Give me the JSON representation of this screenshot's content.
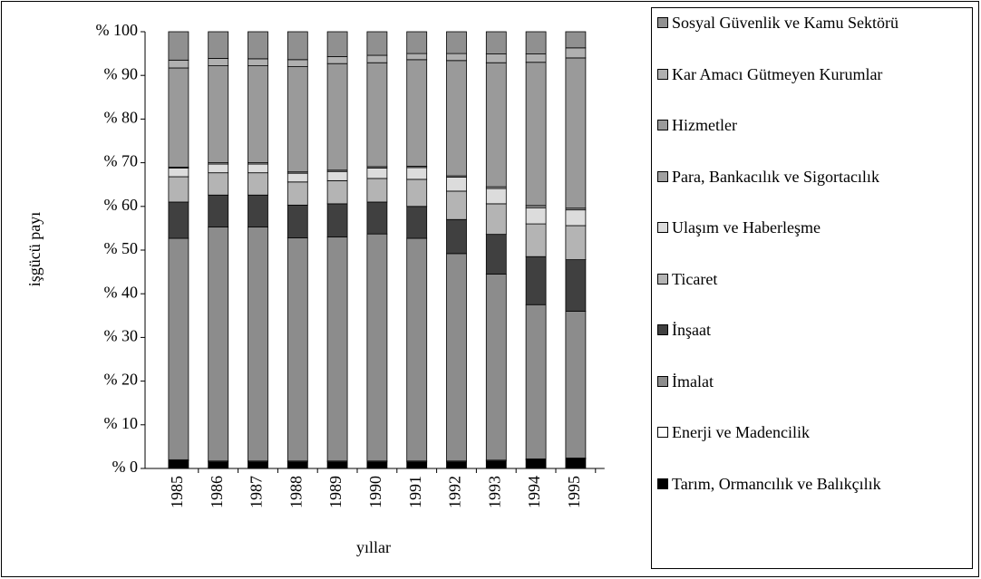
{
  "chart_data": {
    "type": "stacked_bar",
    "x_label": "yıllar",
    "y_label": "işgücü payı",
    "categories": [
      "1985",
      "1986",
      "1987",
      "1988",
      "1989",
      "1990",
      "1991",
      "1992",
      "1993",
      "1994",
      "1995"
    ],
    "ylim": [
      0,
      100
    ],
    "yticks": [
      {
        "value": 0,
        "label": "% 0"
      },
      {
        "value": 10,
        "label": "% 10"
      },
      {
        "value": 20,
        "label": "% 20"
      },
      {
        "value": 30,
        "label": "% 30"
      },
      {
        "value": 40,
        "label": "% 40"
      },
      {
        "value": 50,
        "label": "% 50"
      },
      {
        "value": 60,
        "label": "% 60"
      },
      {
        "value": 70,
        "label": "% 70"
      },
      {
        "value": 80,
        "label": "% 80"
      },
      {
        "value": 90,
        "label": "% 90"
      },
      {
        "value": 100,
        "label": "% 100"
      }
    ],
    "legend_position": "right",
    "series": [
      {
        "name": "Tarım, Ormancılık ve Balıkçılık",
        "color": "#000000",
        "values": [
          1.8,
          1.5,
          1.5,
          1.5,
          1.5,
          1.5,
          1.5,
          1.5,
          1.7,
          2.0,
          2.2
        ]
      },
      {
        "name": "Enerji ve Madencilik",
        "color": "#ffffff",
        "values": [
          0.2,
          0.2,
          0.2,
          0.2,
          0.2,
          0.2,
          0.2,
          0.2,
          0.2,
          0.2,
          0.2
        ]
      },
      {
        "name": "İmalat",
        "color": "#8c8c8c",
        "values": [
          50.7,
          53.6,
          53.6,
          51.1,
          51.3,
          52.0,
          51.0,
          47.5,
          42.6,
          35.3,
          33.6
        ]
      },
      {
        "name": "İnşaat",
        "color": "#404040",
        "values": [
          8.3,
          7.3,
          7.3,
          7.5,
          7.6,
          7.3,
          7.3,
          7.8,
          9.1,
          11.0,
          11.8
        ]
      },
      {
        "name": "Ticaret",
        "color": "#b4b4b4",
        "values": [
          5.8,
          5.1,
          5.1,
          5.3,
          5.3,
          5.4,
          6.2,
          6.5,
          7.0,
          7.5,
          7.8
        ]
      },
      {
        "name": "Ulaşım ve Haberleşme",
        "color": "#dcdcdc",
        "values": [
          2.0,
          2.0,
          2.0,
          2.0,
          2.1,
          2.4,
          2.7,
          3.2,
          3.5,
          3.7,
          3.6
        ]
      },
      {
        "name": "Para, Bankacılık ve Sigortacılık",
        "color": "#a0a0a0",
        "values": [
          0.2,
          0.3,
          0.3,
          0.3,
          0.3,
          0.3,
          0.3,
          0.3,
          0.4,
          0.5,
          0.4
        ]
      },
      {
        "name": "Hizmetler",
        "color": "#9a9a9a",
        "values": [
          22.7,
          22.2,
          22.2,
          24.1,
          24.4,
          23.8,
          24.4,
          26.4,
          28.4,
          32.8,
          34.4
        ]
      },
      {
        "name": "Kar Amacı Gütmeyen Kurumlar",
        "color": "#b0b0b0",
        "values": [
          1.8,
          1.7,
          1.6,
          1.6,
          1.6,
          1.7,
          1.4,
          1.6,
          2.0,
          1.9,
          2.3
        ]
      },
      {
        "name": "Sosyal Güvenlik ve Kamu Sektörü",
        "color": "#909090",
        "values": [
          6.5,
          6.1,
          6.2,
          6.4,
          5.7,
          5.4,
          5.0,
          5.0,
          5.1,
          5.1,
          3.7
        ]
      }
    ]
  }
}
